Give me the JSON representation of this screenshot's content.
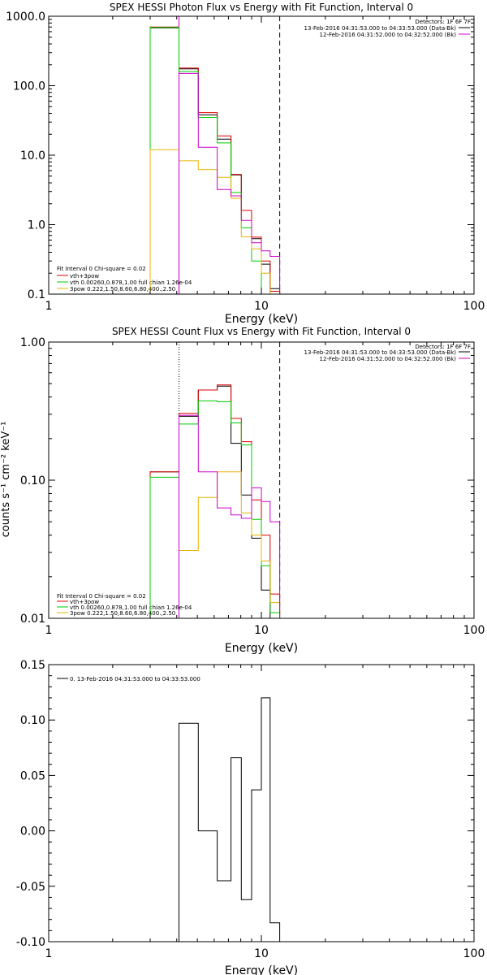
{
  "chart_data": [
    {
      "type": "line",
      "title": "SPEX HESSI Photon Flux vs Energy with Fit Function, Interval 0",
      "xlabel": "Energy (keV)",
      "ylabel": "",
      "xscale": "log",
      "yscale": "log",
      "xlim": [
        1,
        100
      ],
      "ylim": [
        0.1,
        1000
      ],
      "xticks": [
        "1",
        "10",
        "100"
      ],
      "yticks": [
        {
          "v": 1000,
          "label": "1000.0"
        },
        {
          "v": 100,
          "label": "100.0"
        },
        {
          "v": 10,
          "label": "10.0"
        },
        {
          "v": 1,
          "label": "1.0"
        },
        {
          "v": 0.1,
          "label": "0.1"
        }
      ],
      "detectors": "Detectors: 1F 6F 7F",
      "time_legend": [
        {
          "text": "13-Feb-2016 04:31:53.000 to 04:33:53.000 (Data-Bk)",
          "color": "#000000"
        },
        {
          "text": "12-Feb-2016 04:31:52.000 to 04:32:52.000 (Bk)",
          "color": "#cc00cc"
        }
      ],
      "fit_legend": {
        "header": "Fit Interval 0   Chi-square = 0.02",
        "entries": [
          {
            "text": "vth+3pow",
            "color": "#dd0000"
          },
          {
            "text": "vth 0.00260,0.878,1.00   full chian 1.26e-04",
            "color": "#00cc00"
          },
          {
            "text": "3pow 0.222,1.50,8.60,6.80,400.,2.50",
            "color": "#e8b400"
          }
        ]
      },
      "vlines": [
        {
          "x": 4.1,
          "style": "solid",
          "color": "#cc00cc"
        },
        {
          "x": 12.2,
          "style": "dashed",
          "color": "#000000"
        }
      ],
      "edges": [
        3.0,
        4.1,
        5.05,
        6.2,
        7.2,
        8.05,
        9.0,
        10.0,
        11.0,
        12.2
      ],
      "series": [
        {
          "name": "data",
          "color": "#000000",
          "values": [
            680,
            175,
            38,
            17,
            5.2,
            1.6,
            0.63,
            0.27,
            0.12
          ]
        },
        {
          "name": "vth+3pow",
          "color": "#dd0000",
          "values": [
            700,
            180,
            41,
            19,
            5.3,
            1.6,
            0.66,
            0.3,
            0.11
          ]
        },
        {
          "name": "vth",
          "color": "#00cc00",
          "values": [
            690,
            160,
            35,
            15,
            2.9,
            0.9,
            0.3,
            0.1,
            0.03
          ]
        },
        {
          "name": "3pow",
          "color": "#e8b400",
          "values": [
            12,
            8.3,
            6.2,
            4.8,
            2.4,
            0.67,
            0.45,
            0.2,
            0.08
          ]
        },
        {
          "name": "bk",
          "color": "#cc00cc",
          "values": [
            null,
            150,
            13,
            3.2,
            2.6,
            1.15,
            0.55,
            0.42,
            0.35
          ]
        }
      ]
    },
    {
      "type": "line",
      "title": "SPEX HESSI Count Flux vs Energy with Fit Function, Interval 0",
      "xlabel": "Energy (keV)",
      "ylabel": "counts s⁻¹ cm⁻² keV⁻¹",
      "xscale": "log",
      "yscale": "log",
      "xlim": [
        1,
        100
      ],
      "ylim": [
        0.01,
        1
      ],
      "xticks": [
        "1",
        "10",
        "100"
      ],
      "yticks": [
        {
          "v": 1,
          "label": "1.00"
        },
        {
          "v": 0.1,
          "label": "0.10"
        },
        {
          "v": 0.01,
          "label": "0.01"
        }
      ],
      "detectors": "Detectors: 1F 6F 7F",
      "time_legend": [
        {
          "text": "13-Feb-2016 04:31:53.000 to 04:33:53.000 (Data-Bk)",
          "color": "#000000"
        },
        {
          "text": "12-Feb-2016 04:31:52.000 to 04:32:52.000 (Bk)",
          "color": "#cc00cc"
        }
      ],
      "fit_legend": {
        "header": "Fit Interval 0   Chi-square = 0.02",
        "entries": [
          {
            "text": "vth+3pow",
            "color": "#dd0000"
          },
          {
            "text": "vth 0.00260,0.878,1.00   full chian 1.26e-04",
            "color": "#00cc00"
          },
          {
            "text": "3pow 0.222,1.50,8.60,6.80,400.,2.50",
            "color": "#e8b400"
          }
        ]
      },
      "vlines": [
        {
          "x": 4.1,
          "style": "dotted",
          "color": "#000000"
        },
        {
          "x": 12.2,
          "style": "dashed",
          "color": "#000000"
        }
      ],
      "edges": [
        3.0,
        4.1,
        5.05,
        6.2,
        7.2,
        8.05,
        9.0,
        10.0,
        11.0,
        12.2
      ],
      "series": [
        {
          "name": "data",
          "color": "#000000",
          "values": [
            0.115,
            0.29,
            0.45,
            0.48,
            0.185,
            0.078,
            0.038,
            0.016,
            null
          ]
        },
        {
          "name": "vth+3pow",
          "color": "#dd0000",
          "values": [
            0.115,
            0.305,
            0.45,
            0.49,
            0.28,
            0.19,
            0.072,
            0.04,
            0.015
          ]
        },
        {
          "name": "vth",
          "color": "#00cc00",
          "values": [
            0.105,
            0.255,
            0.375,
            0.37,
            0.26,
            0.18,
            0.052,
            0.024,
            0.011
          ]
        },
        {
          "name": "3pow",
          "color": "#e8b400",
          "values": [
            null,
            0.031,
            0.075,
            0.115,
            0.115,
            0.058,
            0.04,
            0.026,
            0.013
          ]
        },
        {
          "name": "bk",
          "color": "#cc00cc",
          "values": [
            null,
            0.295,
            0.115,
            0.063,
            0.056,
            0.053,
            0.088,
            0.07,
            0.05
          ]
        }
      ]
    },
    {
      "type": "line",
      "title": "",
      "xlabel": "Energy (keV)",
      "ylabel": "",
      "xscale": "log",
      "yscale": "linear",
      "xlim": [
        1,
        100
      ],
      "ylim": [
        -0.1,
        0.15
      ],
      "xticks": [
        "1",
        "10",
        "100"
      ],
      "yticks": [
        {
          "v": 0.15,
          "label": "0.15"
        },
        {
          "v": 0.1,
          "label": "0.10"
        },
        {
          "v": 0.05,
          "label": "0.05"
        },
        {
          "v": 0.0,
          "label": "0.00"
        },
        {
          "v": -0.05,
          "label": "-0.05"
        },
        {
          "v": -0.1,
          "label": "-0.10"
        }
      ],
      "legend": "0. 13-Feb-2016 04:31:53.000 to 04:33:53.000",
      "edges": [
        4.1,
        5.05,
        6.2,
        7.2,
        8.05,
        9.0,
        10.0,
        11.0,
        12.2
      ],
      "series": [
        {
          "name": "",
          "color": "#000000",
          "values": [
            0.097,
            0.0,
            -0.045,
            0.066,
            -0.062,
            0.037,
            0.12,
            -0.083
          ]
        }
      ]
    }
  ]
}
